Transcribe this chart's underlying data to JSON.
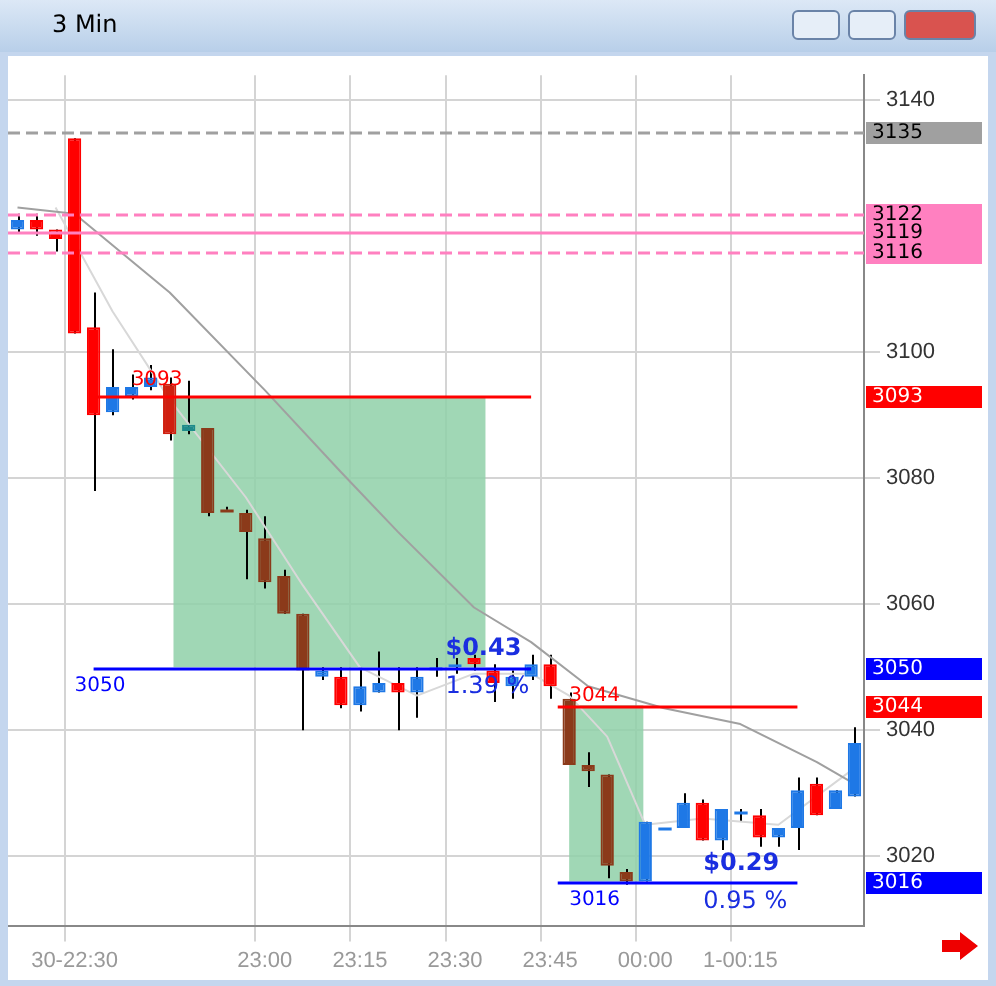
{
  "chart_data": {
    "type": "candlestick",
    "title": "3 Min",
    "categories": [
      null,
      null,
      null,
      "30-22:30",
      null,
      null,
      null,
      null,
      null,
      null,
      null,
      null,
      null,
      "23:00",
      null,
      null,
      null,
      null,
      "23:15",
      null,
      null,
      null,
      null,
      "23:30",
      null,
      null,
      null,
      null,
      "23:45",
      null,
      null,
      null,
      null,
      "00:00",
      null,
      null,
      null,
      null,
      "1-00:15",
      null,
      null,
      null,
      null,
      null,
      null
    ],
    "ohlc": [
      [
        3119.5,
        3122,
        3119,
        3121
      ],
      [
        3121,
        3122,
        3118.5,
        3119.5
      ],
      [
        3119.5,
        3119.5,
        3116,
        3118
      ],
      [
        3134,
        3134,
        3103,
        3103
      ],
      [
        3104,
        3109.5,
        3078,
        3090
      ],
      [
        3090.5,
        3100.5,
        3090,
        3094.5
      ],
      [
        3093,
        3096.5,
        3092.5,
        3094.5
      ],
      [
        3094.5,
        3098,
        3094,
        3096
      ],
      [
        3095,
        3096,
        3086,
        3087
      ],
      [
        3087.5,
        3095.5,
        3087,
        3088.5
      ],
      [
        3088,
        3088,
        3074,
        3074.5
      ],
      [
        3075,
        3075.5,
        3075,
        3075
      ],
      [
        3074.5,
        3075,
        3064,
        3071.5
      ],
      [
        3070.5,
        3074,
        3062.5,
        3063.5
      ],
      [
        3064.5,
        3065.5,
        3058.5,
        3058.5
      ],
      [
        3058.5,
        3058.5,
        3040,
        3049.5
      ],
      [
        3048.5,
        3050,
        3048,
        3049.5
      ],
      [
        3048.5,
        3050,
        3043.5,
        3044
      ],
      [
        3044,
        3050,
        3043,
        3047
      ],
      [
        3046,
        3052.5,
        3046,
        3047.5
      ],
      [
        3047.5,
        3050,
        3040,
        3046
      ],
      [
        3046,
        3050,
        3042,
        3048.5
      ],
      [
        3049.5,
        3051.5,
        3048.5,
        3050
      ],
      [
        3050,
        3051.5,
        3049,
        3050.5
      ],
      [
        3051.5,
        3052,
        3049.5,
        3050.5
      ],
      [
        3049.5,
        3050.5,
        3044.5,
        3047.5
      ],
      [
        3047,
        3049.5,
        3045,
        3048.5
      ],
      [
        3048.5,
        3052,
        3048,
        3050.5
      ],
      [
        3050.5,
        3052,
        3045,
        3047
      ],
      [
        3045,
        3046,
        3034.5,
        3034.5
      ],
      [
        3034.5,
        3036.5,
        3031,
        3033.5
      ],
      [
        3033,
        3033,
        3016.5,
        3018.5
      ],
      [
        3017.5,
        3018,
        3015.5,
        3016
      ],
      [
        3016,
        3025.5,
        3016,
        3025.5
      ],
      [
        3024.5,
        3024.5,
        3024.5,
        3024.5
      ],
      [
        3024.5,
        3030,
        3024.5,
        3028.5
      ],
      [
        3028.5,
        3029,
        3022.5,
        3022.5
      ],
      [
        3022.5,
        3027.5,
        3021,
        3027.5
      ],
      [
        3027,
        3027.5,
        3025.5,
        3027
      ],
      [
        3026.5,
        3027.5,
        3021.5,
        3023
      ],
      [
        3023,
        3024.5,
        3021.5,
        3024.5
      ],
      [
        3024.5,
        3032.5,
        3021,
        3030.5
      ],
      [
        3031.5,
        3032.5,
        3026.5,
        3026.5
      ],
      [
        3027.5,
        3030.5,
        3027.5,
        3030.5
      ],
      [
        3029.5,
        3040.5,
        3029.5,
        3038
      ]
    ],
    "colors": [
      "#1e78e6",
      "#ff0000",
      "#ff0000",
      "#ff0000",
      "#ff0000",
      "#1e78e6",
      "#1e78e6",
      "#1e78e6",
      "#d02010",
      "#1e8a8a",
      "#8b3a1a",
      "#8b3a1a",
      "#8b3a1a",
      "#8b3a1a",
      "#8b3a1a",
      "#8b3a1a",
      "#1e78e6",
      "#ff0000",
      "#1e78e6",
      "#1e78e6",
      "#ff0000",
      "#1e78e6",
      "#1e78e6",
      "#1e78e6",
      "#ff0000",
      "#ff0000",
      "#1e78e6",
      "#1e78e6",
      "#ff0000",
      "#8b3a1a",
      "#8b3a1a",
      "#8b3a1a",
      "#8b3a1a",
      "#1e78e6",
      "#1e78e6",
      "#1e78e6",
      "#ff0000",
      "#1e78e6",
      "#1e78e6",
      "#ff0000",
      "#1e78e6",
      "#1e78e6",
      "#ff0000",
      "#1e78e6",
      "#1e78e6"
    ],
    "series": [
      {
        "type": "line",
        "color": "#a0a0a0",
        "values": [
          3123,
          null,
          null,
          3122,
          null,
          null,
          null,
          null,
          3109.5,
          null,
          null,
          null,
          null,
          3094,
          null,
          null,
          null,
          3081,
          null,
          null,
          3071.5,
          null,
          null,
          null,
          3059.5,
          null,
          null,
          3054,
          null,
          null,
          3047,
          null,
          null,
          null,
          3043.5,
          null,
          null,
          null,
          3041,
          null,
          null,
          null,
          3035,
          null,
          3031.5
        ]
      },
      {
        "type": "line",
        "color": "#d8d8d8",
        "values": [
          null,
          null,
          3123,
          null,
          null,
          3106.5,
          null,
          null,
          3092.5,
          null,
          null,
          null,
          3077,
          null,
          null,
          3063,
          null,
          null,
          3050,
          null,
          null,
          3045.5,
          null,
          null,
          3049,
          null,
          null,
          3049,
          null,
          3045.5,
          null,
          3039,
          null,
          3025,
          null,
          null,
          3026,
          null,
          null,
          null,
          3025,
          null,
          null,
          null,
          3034
        ]
      }
    ],
    "ylim": [
      3009,
      3144
    ],
    "yticks": [
      3140,
      3100,
      3080,
      3060,
      3040,
      3020
    ],
    "grid": true,
    "ref_lines": [
      {
        "axis": "y",
        "value": 3135,
        "label": "3135",
        "color": "#a0a0a0",
        "line_style": "dashed"
      },
      {
        "axis": "y",
        "value": 3122,
        "label": "3122",
        "color": "#ff80c0",
        "line_style": "dashed"
      },
      {
        "axis": "y",
        "value": 3119,
        "label": "3119",
        "color": "#ff80c0",
        "line_style": "solid"
      },
      {
        "axis": "y",
        "value": 3116,
        "label": "3116",
        "color": "#ff80c0",
        "line_style": "dashed"
      },
      {
        "axis": "y",
        "value": 3093,
        "label": "3093",
        "color": "#ff0000",
        "line_style": "solid"
      },
      {
        "axis": "y",
        "value": 3050,
        "label": "3050",
        "color": "#0000ff",
        "line_style": "solid"
      },
      {
        "axis": "y",
        "value": 3044,
        "label": "3044",
        "color": "#ff0000",
        "line_style": "solid"
      },
      {
        "axis": "y",
        "value": 3016,
        "label": "3016",
        "color": "#0000ff",
        "line_style": "solid"
      }
    ],
    "bands": [
      {
        "axis": "y",
        "from": 3050,
        "to": 3093,
        "label": "$0.43\n1.39 %",
        "color": "#8fd0a8"
      },
      {
        "axis": "y",
        "from": 3016,
        "to": 3044,
        "label": "$0.29\n0.95 %",
        "color": "#8fd0a8"
      }
    ]
  }
}
